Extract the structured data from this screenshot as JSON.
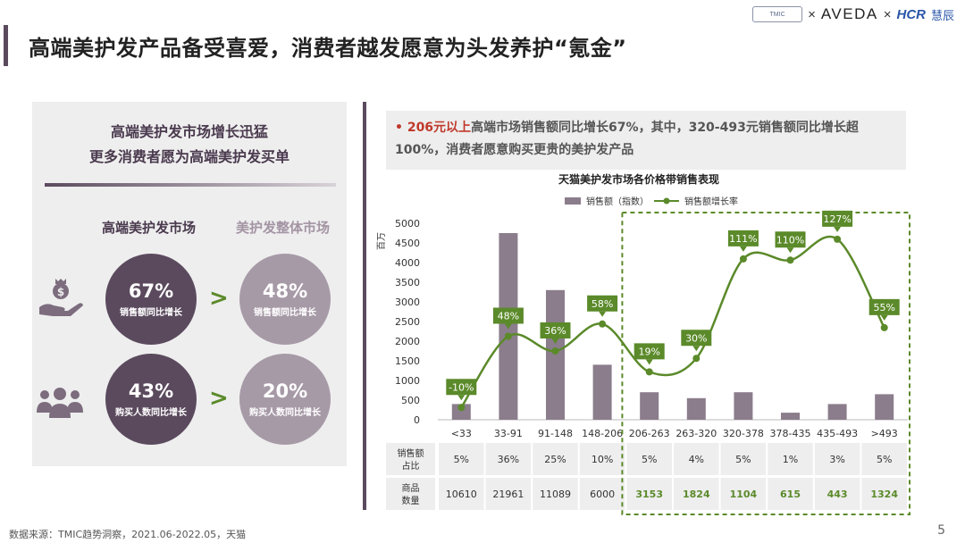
{
  "header": {
    "title": "高端美护发产品备受喜爱，消费者越发愿意为头发养护“氪金”",
    "logos": {
      "tmic": "TMIC",
      "x1": "×",
      "aveda": "AVEDA",
      "x2": "×",
      "hcr": "HCR",
      "hcr_cn": "慧辰"
    }
  },
  "left_panel": {
    "heading_line1": "高端美护发市场增长迅猛",
    "heading_line2": "更多消费者愿为高端美护发买单",
    "col_a": "高端美护发市场",
    "col_b": "美护发整体市场",
    "row1": {
      "icon": "money-hand-icon",
      "a_value": "67%",
      "a_caption": "销售额同比增长",
      "b_value": "48%",
      "b_caption": "销售额同比增长",
      "gt": ">"
    },
    "row2": {
      "icon": "people-group-icon",
      "a_value": "43%",
      "a_caption": "购买人数同比增长",
      "b_value": "20%",
      "b_caption": "购买人数同比增长",
      "gt": ">"
    }
  },
  "callout": {
    "bullet": "•",
    "highlight": "206元以上",
    "text": "高端市场销售额同比增长67%，其中，320-493元销售额同比增长超100%，消费者愿意购买更贵的美护发产品"
  },
  "chart_data": {
    "type": "bar",
    "title": "天猫美护发市场各价格带销售表现",
    "ylabel": "百万",
    "ylim": [
      0,
      5000
    ],
    "yticks": [
      0,
      500,
      1000,
      1500,
      2000,
      2500,
      3000,
      3500,
      4000,
      4500,
      5000
    ],
    "categories": [
      "<33",
      "33-91",
      "91-148",
      "148-206",
      "206-263",
      "263-320",
      "320-378",
      "378-435",
      "435-493",
      ">493"
    ],
    "series": [
      {
        "name": "销售额（指数）",
        "kind": "bar",
        "color": "#8b7d8c",
        "values": [
          400,
          4750,
          3300,
          1400,
          700,
          550,
          700,
          180,
          400,
          650
        ]
      },
      {
        "name": "销售额增长率",
        "kind": "line",
        "color": "#5b8a2a",
        "values": [
          -10,
          48,
          36,
          58,
          19,
          30,
          111,
          110,
          127,
          55
        ],
        "labels": [
          "-10%",
          "48%",
          "36%",
          "58%",
          "19%",
          "30%",
          "111%",
          "110%",
          "127%",
          "55%"
        ]
      }
    ],
    "table": {
      "row_headers": [
        "销售额\n占比",
        "商品\n数量"
      ],
      "share": [
        "5%",
        "36%",
        "25%",
        "10%",
        "5%",
        "4%",
        "5%",
        "1%",
        "3%",
        "5%"
      ],
      "count": [
        "10610",
        "21961",
        "11089",
        "6000",
        "3153",
        "1824",
        "1104",
        "615",
        "443",
        "1324"
      ]
    },
    "highlight_from_index": 4,
    "colors": {
      "bar": "#8b7d8c",
      "line": "#5b8a2a",
      "table_bg": "#eeeeee",
      "highlight_text": "#5b8a2a"
    }
  },
  "footer": {
    "source": "数据来源：TMIC趋势洞察，2021.06-2022.05，天猫",
    "page": "5"
  }
}
